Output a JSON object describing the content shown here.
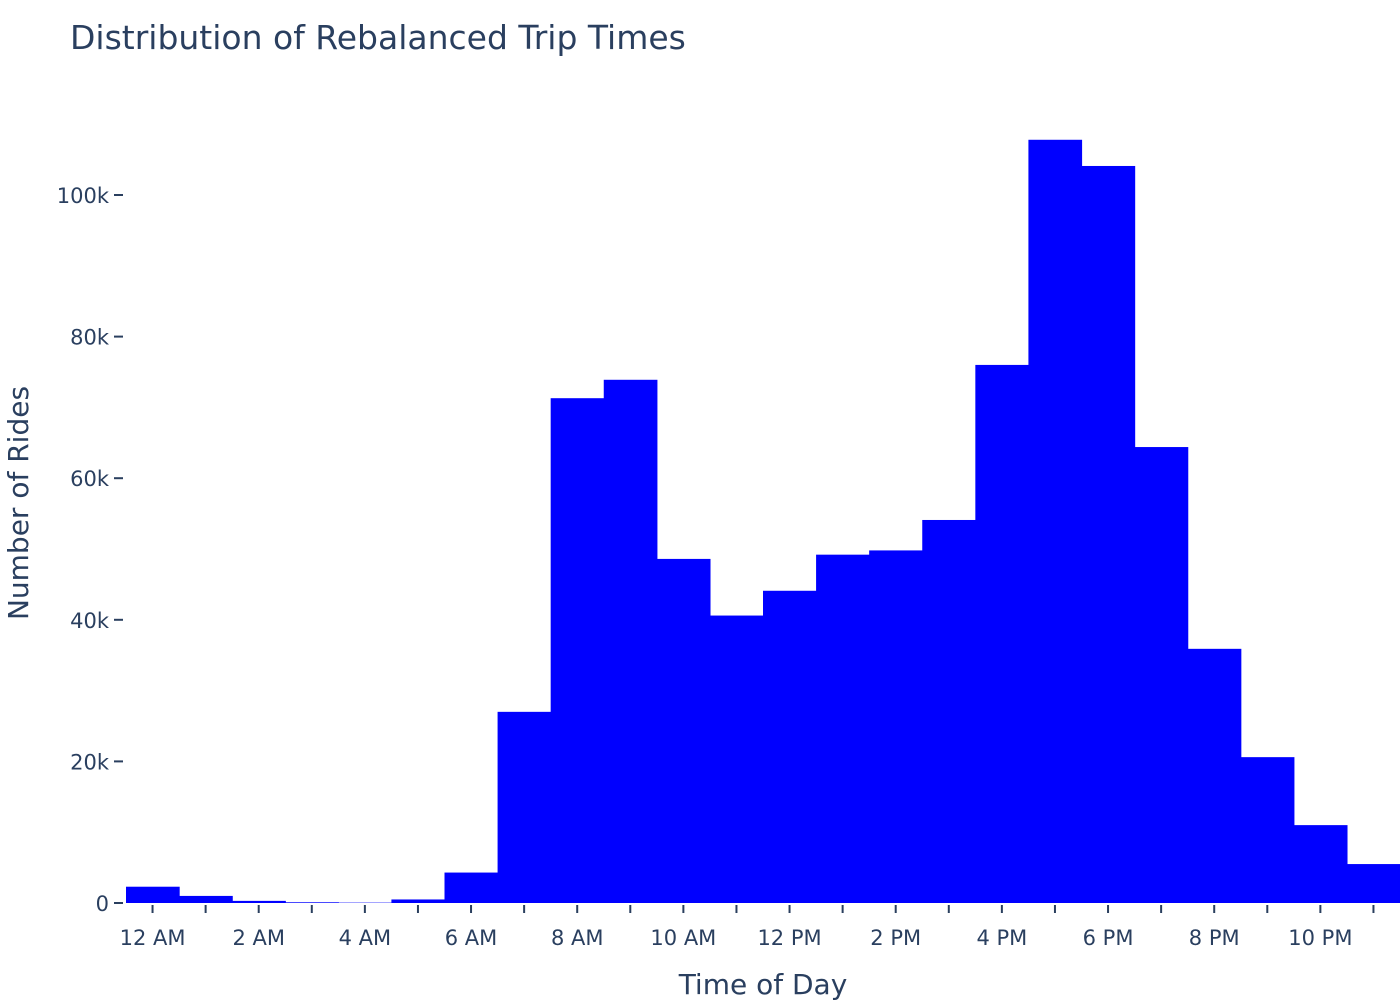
{
  "chart_data": {
    "type": "bar",
    "title": "Distribution of Rebalanced Trip Times",
    "xlabel": "Time of Day",
    "ylabel": "Number of Rides",
    "bar_color": "#0000ff",
    "text_color": "#2a3f5f",
    "hours": [
      0,
      1,
      2,
      3,
      4,
      5,
      6,
      7,
      8,
      9,
      10,
      11,
      12,
      13,
      14,
      15,
      16,
      17,
      18,
      19,
      20,
      21,
      22,
      23
    ],
    "categories": [
      "12 AM",
      "1 AM",
      "2 AM",
      "3 AM",
      "4 AM",
      "5 AM",
      "6 AM",
      "7 AM",
      "8 AM",
      "9 AM",
      "10 AM",
      "11 AM",
      "12 PM",
      "1 PM",
      "2 PM",
      "3 PM",
      "4 PM",
      "5 PM",
      "6 PM",
      "7 PM",
      "8 PM",
      "9 PM",
      "10 PM",
      "11 PM"
    ],
    "values": [
      2300,
      1000,
      300,
      100,
      50,
      500,
      4300,
      27000,
      71300,
      73900,
      48600,
      40600,
      44100,
      49200,
      49800,
      54100,
      76000,
      107800,
      104100,
      64400,
      35900,
      20600,
      11000,
      5500
    ],
    "xtick_labels": [
      "12 AM",
      "2 AM",
      "4 AM",
      "6 AM",
      "8 AM",
      "10 AM",
      "12 PM",
      "2 PM",
      "4 PM",
      "6 PM",
      "8 PM",
      "10 PM"
    ],
    "xtick_hours": [
      0,
      2,
      4,
      6,
      8,
      10,
      12,
      14,
      16,
      18,
      20,
      22
    ],
    "ytick_values": [
      0,
      20000,
      40000,
      60000,
      80000,
      100000
    ],
    "ytick_labels": [
      "0",
      "20k",
      "40k",
      "60k",
      "80k",
      "100k"
    ],
    "ylim": [
      0,
      115000
    ],
    "grid": false,
    "legend": "none"
  }
}
